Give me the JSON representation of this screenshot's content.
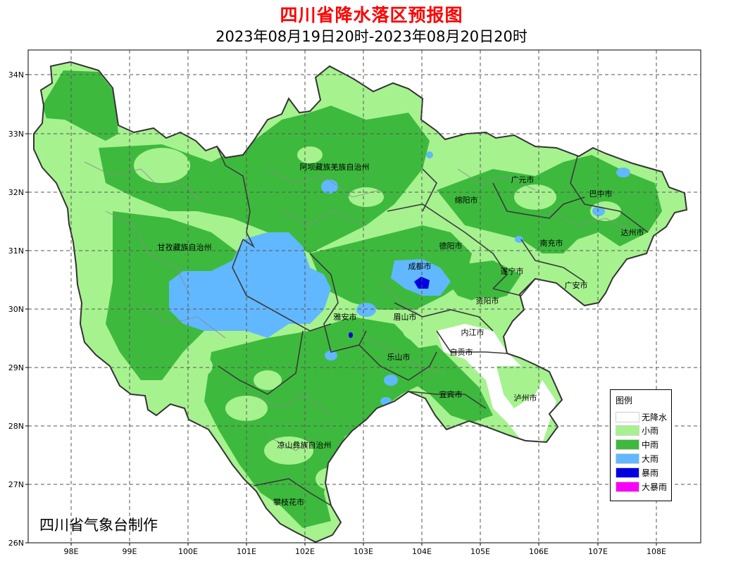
{
  "title": "四川省降水落区预报图",
  "subtitle": "2023年08月19日20时-2023年08月20日20时",
  "credit": "四川省气象台制作",
  "lat_ticks": [
    "34N",
    "33N",
    "32N",
    "31N",
    "30N",
    "29N",
    "28N",
    "27N",
    "26N"
  ],
  "lon_ticks": [
    "98E",
    "99E",
    "100E",
    "101E",
    "102E",
    "103E",
    "104E",
    "105E",
    "106E",
    "107E",
    "108E"
  ],
  "regions": [
    "阿坝藏族羌族自治州",
    "甘孜藏族自治州",
    "广元市",
    "巴中市",
    "绵阳市",
    "达州市",
    "德阳市",
    "南充市",
    "成都市",
    "遂宁市",
    "广安市",
    "资阳市",
    "雅安市",
    "眉山市",
    "内江市",
    "自贡市",
    "乐山市",
    "宜宾市",
    "泸州市",
    "凉山彝族自治州",
    "攀枝花市"
  ],
  "legend": {
    "title": "图例",
    "items": [
      {
        "label": "无降水",
        "color": "#ffffff"
      },
      {
        "label": "小雨",
        "color": "#a6f28f"
      },
      {
        "label": "中雨",
        "color": "#3dba3d"
      },
      {
        "label": "大雨",
        "color": "#61b8ff"
      },
      {
        "label": "暴雨",
        "color": "#0000e1"
      },
      {
        "label": "大暴雨",
        "color": "#fa00fa"
      }
    ]
  }
}
